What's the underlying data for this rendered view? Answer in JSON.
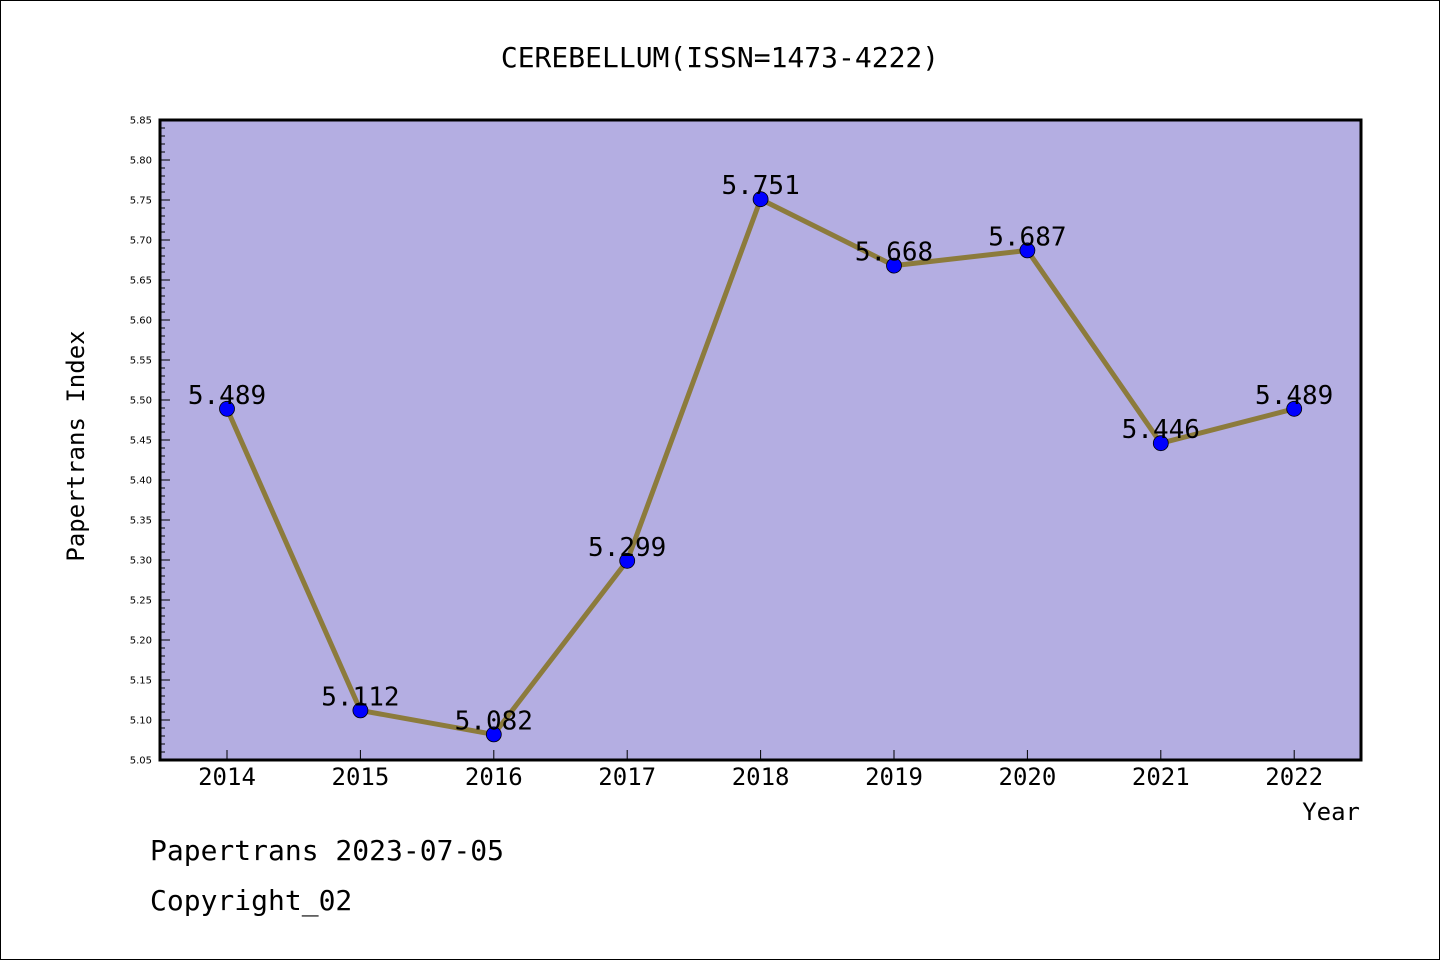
{
  "chart_data": {
    "type": "line",
    "title": "CEREBELLUM(ISSN=1473-4222)",
    "xlabel": "Year",
    "ylabel": "Papertrans Index",
    "categories": [
      "2014",
      "2015",
      "2016",
      "2017",
      "2018",
      "2019",
      "2020",
      "2021",
      "2022"
    ],
    "series": [
      {
        "values": [
          5.489,
          5.112,
          5.082,
          5.299,
          5.751,
          5.668,
          5.687,
          5.446,
          5.489
        ],
        "labels": [
          "5.489",
          "5.112",
          "5.082",
          "5.299",
          "5.751",
          "5.668",
          "5.687",
          "5.446",
          "5.489"
        ]
      }
    ],
    "ylim": [
      5.05,
      5.85
    ],
    "yticks": [
      "5.05",
      "5.10",
      "5.15",
      "5.20",
      "5.25",
      "5.30",
      "5.35",
      "5.40",
      "5.45",
      "5.50",
      "5.55",
      "5.60",
      "5.65",
      "5.70",
      "5.75",
      "5.80",
      "5.85"
    ],
    "grid": false,
    "legend": "none",
    "colors": {
      "plot_background": "#b4aee2",
      "line": "#8c7b3c",
      "marker": "#0000ff",
      "axis": "#000000"
    }
  },
  "footer": {
    "line1": "Papertrans 2023-07-05",
    "line2": "Copyright_02"
  }
}
